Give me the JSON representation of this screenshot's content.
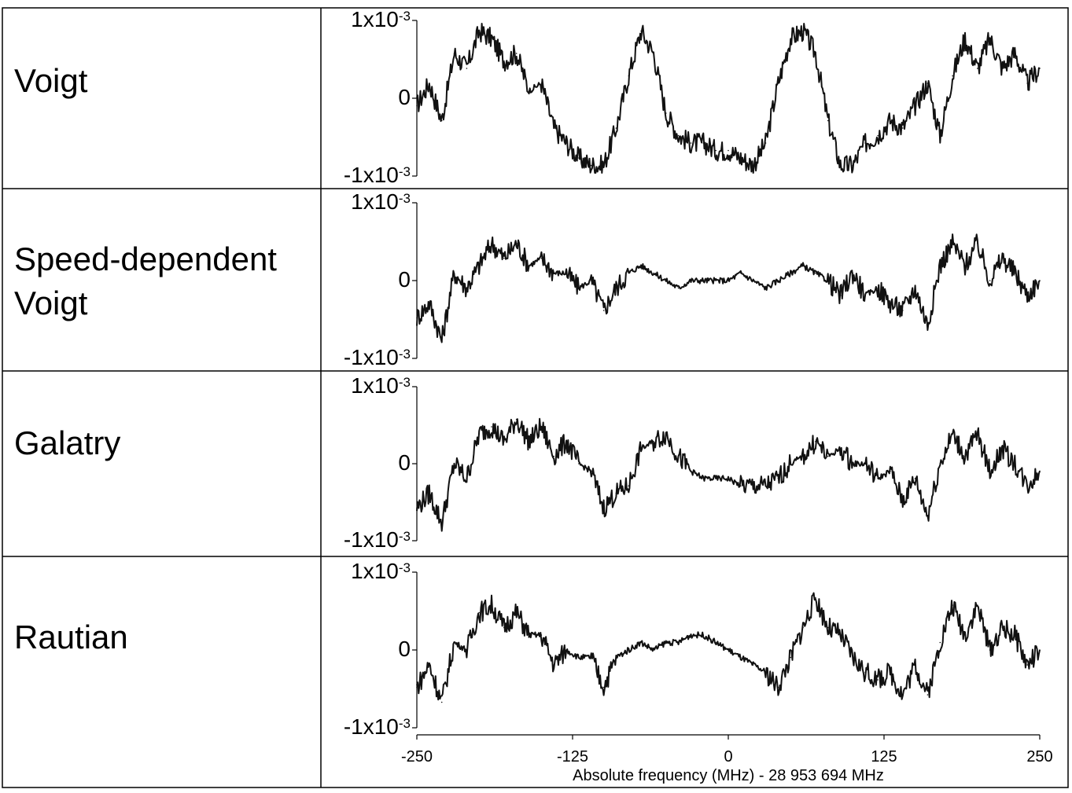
{
  "chart_data": [
    {
      "type": "line",
      "row_label": [
        "Voigt"
      ],
      "y_ticks": [
        "1x10",
        "0",
        "-1x10"
      ],
      "y_tick_exponent": "-3",
      "ylim": [
        -0.001,
        0.001
      ],
      "xlim": [
        -250,
        250
      ],
      "series": [
        {
          "x": [
            -250,
            -240,
            -230,
            -220,
            -210,
            -200,
            -190,
            -180,
            -170,
            -160,
            -150,
            -140,
            -130,
            -120,
            -110,
            -100,
            -90,
            -80,
            -70,
            -60,
            -50,
            -40,
            -30,
            -20,
            -10,
            0,
            10,
            20,
            30,
            40,
            50,
            60,
            70,
            80,
            90,
            100,
            110,
            120,
            130,
            140,
            150,
            160,
            170,
            180,
            190,
            200,
            210,
            220,
            230,
            240,
            250
          ],
          "values": [
            -0.0001,
            0.0002,
            -0.0003,
            0.0006,
            0.0004,
            0.0009,
            0.0008,
            0.0005,
            0.0006,
            0.0001,
            0.0002,
            -0.0004,
            -0.0006,
            -0.0008,
            -0.0009,
            -0.0009,
            -0.0004,
            0.0003,
            0.0009,
            0.0006,
            -0.0002,
            -0.0005,
            -0.0006,
            -0.0006,
            -0.0007,
            -0.0007,
            -0.0008,
            -0.0009,
            -0.0006,
            0.0002,
            0.0008,
            0.0009,
            0.0006,
            -0.0003,
            -0.0009,
            -0.0009,
            -0.0006,
            -0.0005,
            -0.0003,
            -0.0004,
            -0.0001,
            0.0002,
            -0.0005,
            0.0003,
            0.0008,
            0.0004,
            0.0008,
            0.0004,
            0.0006,
            0.0002,
            0.0004
          ]
        }
      ]
    },
    {
      "type": "line",
      "row_label": [
        "Speed-dependent",
        "Voigt"
      ],
      "y_ticks": [
        "1x10",
        "0",
        "-1x10"
      ],
      "y_tick_exponent": "-3",
      "ylim": [
        -0.001,
        0.001
      ],
      "xlim": [
        -250,
        250
      ],
      "series": [
        {
          "x": [
            -250,
            -240,
            -230,
            -220,
            -210,
            -200,
            -190,
            -180,
            -170,
            -160,
            -150,
            -140,
            -130,
            -120,
            -110,
            -100,
            -90,
            -80,
            -70,
            -60,
            -50,
            -40,
            -30,
            -20,
            -10,
            0,
            10,
            20,
            30,
            40,
            50,
            60,
            70,
            80,
            90,
            100,
            110,
            120,
            130,
            140,
            150,
            160,
            170,
            180,
            190,
            200,
            210,
            220,
            230,
            240,
            250
          ],
          "values": [
            -0.0005,
            -0.0003,
            -0.0008,
            0.0001,
            -0.0001,
            0.0002,
            0.0005,
            0.0003,
            0.0005,
            0.0002,
            0.0003,
            0.0001,
            0.0001,
            -0.0001,
            0.0,
            -0.0004,
            -0.0001,
            0.0001,
            0.0002,
            0.0001,
            0.0,
            -0.0001,
            0.0,
            0.0,
            0.0,
            0.0,
            0.0001,
            0.0,
            -0.0001,
            0.0,
            0.0001,
            0.0002,
            0.0001,
            0.0,
            -0.0002,
            0.0001,
            -0.0002,
            -0.0001,
            -0.0003,
            -0.0004,
            -0.0001,
            -0.0006,
            0.0002,
            0.0005,
            0.0002,
            0.0005,
            0.0,
            0.0003,
            0.0001,
            -0.0002,
            0.0
          ]
        }
      ]
    },
    {
      "type": "line",
      "row_label": [
        "Galatry"
      ],
      "y_ticks": [
        "1x10",
        "0",
        "-1x10"
      ],
      "y_tick_exponent": "-3",
      "ylim": [
        -0.001,
        0.001
      ],
      "xlim": [
        -250,
        250
      ],
      "series": [
        {
          "x": [
            -250,
            -240,
            -230,
            -220,
            -210,
            -200,
            -190,
            -180,
            -170,
            -160,
            -150,
            -140,
            -130,
            -120,
            -110,
            -100,
            -90,
            -80,
            -70,
            -60,
            -50,
            -40,
            -30,
            -20,
            -10,
            0,
            10,
            20,
            30,
            40,
            50,
            60,
            70,
            80,
            90,
            100,
            110,
            120,
            130,
            140,
            150,
            160,
            170,
            180,
            190,
            200,
            210,
            220,
            230,
            240,
            250
          ],
          "values": [
            -0.0006,
            -0.0004,
            -0.0008,
            0.0,
            -0.0002,
            0.0004,
            0.0005,
            0.0003,
            0.0006,
            0.0003,
            0.0005,
            0.0001,
            0.0003,
            0.0,
            -0.0001,
            -0.0006,
            -0.0004,
            -0.0003,
            0.0002,
            0.0003,
            0.0004,
            0.0001,
            -0.0001,
            -0.0002,
            -0.0002,
            -0.0002,
            -0.0003,
            -0.0003,
            -0.0003,
            -0.0002,
            0.0,
            0.0001,
            0.0003,
            0.0001,
            0.0002,
            0.0,
            0.0,
            -0.0002,
            -0.0001,
            -0.0005,
            -0.0002,
            -0.0007,
            0.0,
            0.0004,
            0.0001,
            0.0004,
            -0.0001,
            0.0002,
            0.0,
            -0.0003,
            -0.0001
          ]
        }
      ]
    },
    {
      "type": "line",
      "row_label": [
        "Rautian"
      ],
      "y_ticks": [
        "1x10",
        "0",
        "-1x10"
      ],
      "y_tick_exponent": "-3",
      "ylim": [
        -0.001,
        0.001
      ],
      "xlim": [
        -250,
        250
      ],
      "xlabel": "Absolute frequency (MHz) - 28 953 694 MHz",
      "x_ticks": [
        "-250",
        "-125",
        "0",
        "125",
        "250"
      ],
      "series": [
        {
          "x": [
            -250,
            -240,
            -230,
            -220,
            -210,
            -200,
            -190,
            -180,
            -170,
            -160,
            -150,
            -140,
            -130,
            -120,
            -110,
            -100,
            -90,
            -80,
            -70,
            -60,
            -50,
            -40,
            -30,
            -20,
            -10,
            0,
            10,
            20,
            30,
            40,
            50,
            60,
            70,
            80,
            90,
            100,
            110,
            120,
            130,
            140,
            150,
            160,
            170,
            180,
            190,
            200,
            210,
            220,
            230,
            240,
            250
          ],
          "values": [
            -0.0005,
            -0.0002,
            -0.0007,
            0.0001,
            0.0,
            0.0005,
            0.0006,
            0.0003,
            0.0005,
            0.0002,
            0.0002,
            -0.0002,
            0.0,
            -0.0001,
            -0.0001,
            -0.0005,
            -0.0001,
            0.0,
            0.0001,
            0.0,
            0.0001,
            0.0001,
            0.0002,
            0.0002,
            0.0001,
            0.0,
            -0.0001,
            -0.0002,
            -0.0003,
            -0.0005,
            -0.0001,
            0.0003,
            0.0007,
            0.0003,
            0.0002,
            -0.0001,
            -0.0003,
            -0.0004,
            -0.0003,
            -0.0006,
            -0.0002,
            -0.0006,
            0.0001,
            0.0006,
            0.0002,
            0.0006,
            0.0,
            0.0003,
            0.0002,
            -0.0002,
            0.0
          ]
        }
      ]
    }
  ]
}
